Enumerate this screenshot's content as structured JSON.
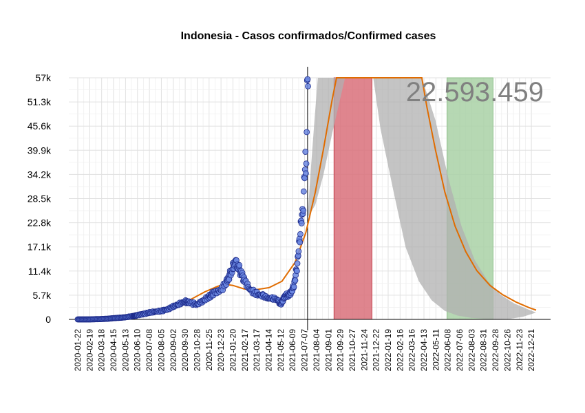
{
  "chart_data": {
    "type": "scatter",
    "title": "Indonesia - Casos confirmados/Confirmed cases",
    "annotation": "22.593.459",
    "xlabel": "",
    "ylabel": "",
    "ylim": [
      0,
      57000
    ],
    "xlim": [
      "2020-01-01",
      "2023-02-04"
    ],
    "y_ticks": [
      0,
      5700,
      11400,
      17100,
      22800,
      28500,
      34200,
      39900,
      45600,
      51300,
      57000
    ],
    "y_tick_labels": [
      "0",
      "5.7k",
      "11.4k",
      "17.1k",
      "22.8k",
      "28.5k",
      "34.2k",
      "39.9k",
      "45.6k",
      "51.3k",
      "57k"
    ],
    "x_ticks": [
      "2020-01-22",
      "2020-02-19",
      "2020-03-18",
      "2020-04-15",
      "2020-05-13",
      "2020-06-10",
      "2020-07-08",
      "2020-08-05",
      "2020-09-02",
      "2020-09-30",
      "2020-10-28",
      "2020-11-25",
      "2020-12-23",
      "2021-01-20",
      "2021-02-17",
      "2021-03-17",
      "2021-04-14",
      "2021-05-12",
      "2021-06-09",
      "2021-07-07",
      "2021-08-04",
      "2021-09-01",
      "2021-09-29",
      "2021-10-27",
      "2021-11-24",
      "2021-12-22",
      "2022-01-19",
      "2022-02-16",
      "2022-03-16",
      "2022-04-13",
      "2022-05-11",
      "2022-06-08",
      "2022-07-06",
      "2022-08-03",
      "2022-08-31",
      "2022-09-28",
      "2022-10-26",
      "2022-11-23",
      "2022-12-21"
    ],
    "today": "2021-07-14",
    "shaded_regions": [
      {
        "start": "2021-09-14",
        "end": "2021-12-12",
        "color": "#d9707a"
      },
      {
        "start": "2022-06-06",
        "end": "2022-09-22",
        "color": "#a9d1a6"
      }
    ],
    "colors": {
      "points_fill": "#6b87e0",
      "points_stroke": "#1c2a8a",
      "fit_line": "#e06c00",
      "band": "#b0b0b0"
    },
    "observed": [
      [
        "2020-01-22",
        0
      ],
      [
        "2020-02-19",
        0
      ],
      [
        "2020-03-18",
        80
      ],
      [
        "2020-04-01",
        150
      ],
      [
        "2020-04-15",
        300
      ],
      [
        "2020-05-01",
        400
      ],
      [
        "2020-05-13",
        500
      ],
      [
        "2020-06-01",
        800
      ],
      [
        "2020-06-10",
        1000
      ],
      [
        "2020-06-25",
        1300
      ],
      [
        "2020-07-08",
        1600
      ],
      [
        "2020-07-20",
        1800
      ],
      [
        "2020-08-05",
        2000
      ],
      [
        "2020-08-20",
        2400
      ],
      [
        "2020-09-02",
        3000
      ],
      [
        "2020-09-15",
        3600
      ],
      [
        "2020-09-30",
        4200
      ],
      [
        "2020-10-10",
        4000
      ],
      [
        "2020-10-28",
        3500
      ],
      [
        "2020-11-10",
        4400
      ],
      [
        "2020-11-25",
        5300
      ],
      [
        "2020-12-05",
        6200
      ],
      [
        "2020-12-23",
        7000
      ],
      [
        "2021-01-05",
        8800
      ],
      [
        "2021-01-15",
        11000
      ],
      [
        "2021-01-25",
        13500
      ],
      [
        "2021-02-01",
        12500
      ],
      [
        "2021-02-10",
        10500
      ],
      [
        "2021-02-17",
        9000
      ],
      [
        "2021-03-01",
        7000
      ],
      [
        "2021-03-17",
        6000
      ],
      [
        "2021-04-01",
        5500
      ],
      [
        "2021-04-14",
        5000
      ],
      [
        "2021-04-25",
        5000
      ],
      [
        "2021-05-06",
        4500
      ],
      [
        "2021-05-12",
        3500
      ],
      [
        "2021-05-22",
        5500
      ],
      [
        "2021-06-01",
        5800
      ],
      [
        "2021-06-09",
        7000
      ],
      [
        "2021-06-15",
        9500
      ],
      [
        "2021-06-21",
        14000
      ],
      [
        "2021-06-27",
        21000
      ],
      [
        "2021-07-02",
        25000
      ],
      [
        "2021-07-05",
        29000
      ],
      [
        "2021-07-07",
        34000
      ],
      [
        "2021-07-09",
        38000
      ],
      [
        "2021-07-10",
        35000
      ],
      [
        "2021-07-11",
        40000
      ],
      [
        "2021-07-12",
        44000
      ],
      [
        "2021-07-13",
        52000
      ],
      [
        "2021-07-14",
        56000
      ],
      [
        "2021-07-15",
        55000
      ]
    ],
    "fit": [
      [
        "2020-01-22",
        0
      ],
      [
        "2020-03-01",
        80
      ],
      [
        "2020-04-15",
        250
      ],
      [
        "2020-06-01",
        650
      ],
      [
        "2020-07-15",
        1300
      ],
      [
        "2020-09-01",
        2800
      ],
      [
        "2020-10-15",
        4800
      ],
      [
        "2020-11-15",
        6500
      ],
      [
        "2020-12-15",
        7800
      ],
      [
        "2021-01-01",
        8300
      ],
      [
        "2021-01-20",
        8000
      ],
      [
        "2021-02-15",
        7200
      ],
      [
        "2021-03-15",
        7000
      ],
      [
        "2021-04-15",
        7500
      ],
      [
        "2021-05-15",
        9000
      ],
      [
        "2021-06-15",
        13500
      ],
      [
        "2021-07-10",
        20500
      ],
      [
        "2021-08-01",
        30000
      ],
      [
        "2021-08-20",
        40000
      ],
      [
        "2021-09-10",
        52000
      ],
      [
        "2021-09-20",
        57000
      ],
      [
        "2022-04-08",
        57000
      ],
      [
        "2022-04-20",
        50000
      ],
      [
        "2022-05-10",
        40000
      ],
      [
        "2022-06-01",
        30000
      ],
      [
        "2022-06-25",
        22000
      ],
      [
        "2022-07-20",
        16000
      ],
      [
        "2022-08-15",
        11500
      ],
      [
        "2022-09-15",
        8000
      ],
      [
        "2022-10-15",
        5800
      ],
      [
        "2022-11-15",
        4100
      ],
      [
        "2022-12-15",
        2800
      ],
      [
        "2023-01-01",
        2200
      ]
    ],
    "band_upper": [
      [
        "2021-07-14",
        24000
      ],
      [
        "2021-07-22",
        36000
      ],
      [
        "2021-07-31",
        48000
      ],
      [
        "2021-08-07",
        57000
      ],
      [
        "2022-04-08",
        57000
      ],
      [
        "2022-05-10",
        47000
      ],
      [
        "2022-06-10",
        33000
      ],
      [
        "2022-07-10",
        22000
      ],
      [
        "2022-08-10",
        14000
      ],
      [
        "2022-09-10",
        9000
      ],
      [
        "2022-10-10",
        5800
      ],
      [
        "2022-11-10",
        3800
      ],
      [
        "2022-12-10",
        2500
      ],
      [
        "2023-01-01",
        1600
      ]
    ],
    "band_lower": [
      [
        "2023-01-01",
        1600
      ],
      [
        "2022-12-01",
        600
      ],
      [
        "2022-11-01",
        150
      ],
      [
        "2022-10-01",
        100
      ],
      [
        "2022-09-01",
        150
      ],
      [
        "2022-08-01",
        350
      ],
      [
        "2022-07-01",
        900
      ],
      [
        "2022-06-01",
        2000
      ],
      [
        "2022-05-01",
        4500
      ],
      [
        "2022-04-01",
        9000
      ],
      [
        "2022-03-01",
        17000
      ],
      [
        "2022-02-01",
        30000
      ],
      [
        "2022-01-01",
        45000
      ],
      [
        "2021-12-15",
        57000
      ],
      [
        "2021-10-10",
        57000
      ],
      [
        "2021-09-10",
        44000
      ],
      [
        "2021-08-20",
        34000
      ],
      [
        "2021-08-01",
        27000
      ],
      [
        "2021-07-14",
        24000
      ]
    ]
  }
}
